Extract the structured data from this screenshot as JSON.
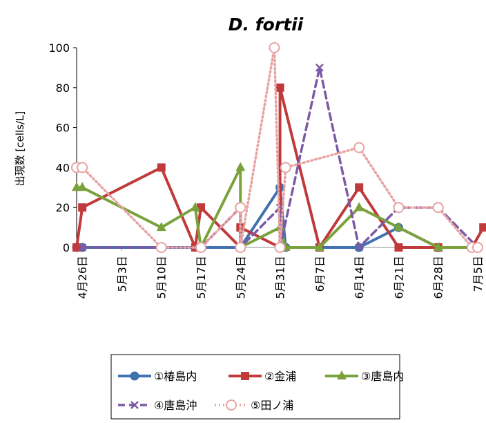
{
  "chart_data": {
    "type": "line",
    "title": "D. fortii",
    "xlabel": "",
    "ylabel": "出現数 [cells/L]",
    "ylim": [
      0,
      100
    ],
    "yticks": [
      0,
      20,
      40,
      60,
      80,
      100
    ],
    "xlim": [
      "2012-04-25",
      "2012-07-05"
    ],
    "xticks": [
      "4月26日",
      "5月3日",
      "5月10日",
      "5月17日",
      "5月24日",
      "5月31日",
      "6月7日",
      "6月14日",
      "6月21日",
      "6月28日",
      "7月5日"
    ],
    "xtick_dates": [
      "2012-04-26",
      "2012-05-03",
      "2012-05-10",
      "2012-05-17",
      "2012-05-24",
      "2012-05-31",
      "2012-06-07",
      "2012-06-14",
      "2012-06-21",
      "2012-06-28",
      "2012-07-05"
    ],
    "grid": false,
    "legend_position": "bottom",
    "series": [
      {
        "name": "①椿島内",
        "color": "#3f72af",
        "dash": "solid",
        "marker": "circle",
        "points": [
          [
            "2012-04-25",
            0
          ],
          [
            "2012-04-26",
            0
          ],
          [
            "2012-05-10",
            0
          ],
          [
            "2012-05-17",
            0
          ],
          [
            "2012-05-24",
            0
          ],
          [
            "2012-05-31",
            30
          ],
          [
            "2012-06-01",
            0
          ],
          [
            "2012-06-14",
            0
          ],
          [
            "2012-06-21",
            10
          ],
          [
            "2012-06-28",
            0
          ],
          [
            "2012-07-04",
            0
          ],
          [
            "2012-07-05",
            0
          ]
        ]
      },
      {
        "name": "②金浦",
        "color": "#c0393b",
        "dash": "solid",
        "marker": "square",
        "points": [
          [
            "2012-04-25",
            0
          ],
          [
            "2012-04-26",
            20
          ],
          [
            "2012-05-10",
            40
          ],
          [
            "2012-05-16",
            0
          ],
          [
            "2012-05-17",
            20
          ],
          [
            "2012-05-24",
            0
          ],
          [
            "2012-05-24",
            10
          ],
          [
            "2012-05-31",
            0
          ],
          [
            "2012-05-31",
            80
          ],
          [
            "2012-06-07",
            0
          ],
          [
            "2012-06-14",
            30
          ],
          [
            "2012-06-21",
            0
          ],
          [
            "2012-06-28",
            0
          ],
          [
            "2012-07-04",
            0
          ],
          [
            "2012-07-06",
            10
          ]
        ]
      },
      {
        "name": "③唐島内",
        "color": "#7aa23b",
        "dash": "solid",
        "marker": "triangle",
        "points": [
          [
            "2012-04-25",
            30
          ],
          [
            "2012-04-26",
            30
          ],
          [
            "2012-05-10",
            10
          ],
          [
            "2012-05-16",
            20
          ],
          [
            "2012-05-17",
            0
          ],
          [
            "2012-05-24",
            40
          ],
          [
            "2012-05-24",
            0
          ],
          [
            "2012-05-31",
            10
          ],
          [
            "2012-06-01",
            0
          ],
          [
            "2012-06-07",
            0
          ],
          [
            "2012-06-14",
            20
          ],
          [
            "2012-06-21",
            10
          ],
          [
            "2012-06-28",
            0
          ],
          [
            "2012-07-05",
            0
          ]
        ]
      },
      {
        "name": "④唐島沖",
        "color": "#7b5aa6",
        "dash": "dash",
        "marker": "x",
        "points": [
          [
            "2012-04-26",
            0
          ],
          [
            "2012-05-10",
            0
          ],
          [
            "2012-05-17",
            0
          ],
          [
            "2012-05-24",
            20
          ],
          [
            "2012-05-24",
            0
          ],
          [
            "2012-05-31",
            20
          ],
          [
            "2012-05-31",
            0
          ],
          [
            "2012-06-07",
            90
          ],
          [
            "2012-06-14",
            0
          ],
          [
            "2012-06-21",
            20
          ],
          [
            "2012-06-28",
            20
          ],
          [
            "2012-07-05",
            0
          ]
        ]
      },
      {
        "name": "⑤田ノ浦",
        "color": "#e8a3a3",
        "dash": "dot",
        "marker": "open-circle",
        "points": [
          [
            "2012-04-25",
            40
          ],
          [
            "2012-04-26",
            40
          ],
          [
            "2012-05-10",
            0
          ],
          [
            "2012-05-17",
            0
          ],
          [
            "2012-05-17",
            0
          ],
          [
            "2012-05-24",
            20
          ],
          [
            "2012-05-24",
            0
          ],
          [
            "2012-05-30",
            100
          ],
          [
            "2012-05-31",
            0
          ],
          [
            "2012-06-01",
            40
          ],
          [
            "2012-06-14",
            50
          ],
          [
            "2012-06-21",
            20
          ],
          [
            "2012-06-28",
            20
          ],
          [
            "2012-07-04",
            0
          ],
          [
            "2012-07-05",
            0
          ]
        ]
      }
    ]
  }
}
